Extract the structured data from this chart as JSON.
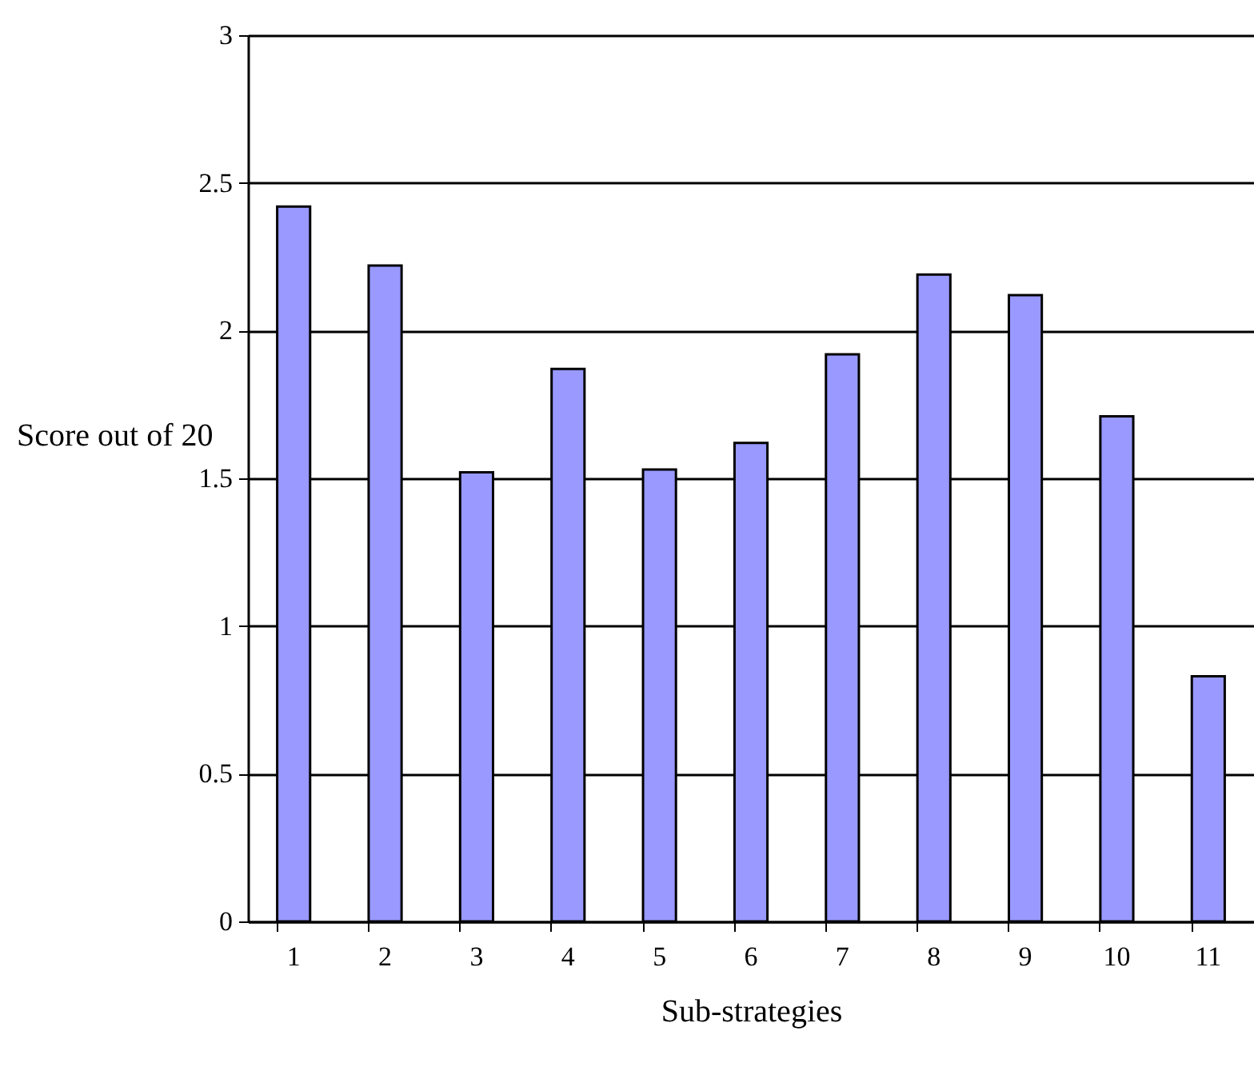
{
  "chart_data": {
    "type": "bar",
    "xlabel": "Sub-strategies",
    "ylabel": "Score out of 20",
    "categories": [
      "1",
      "2",
      "3",
      "4",
      "5",
      "6",
      "7",
      "8",
      "9",
      "10",
      "11"
    ],
    "values": [
      2.42,
      2.22,
      1.52,
      1.87,
      1.53,
      1.62,
      1.92,
      2.19,
      2.12,
      1.71,
      0.83
    ],
    "color": "#9999ff",
    "ylim": [
      0,
      3
    ],
    "yticks": [
      0,
      0.5,
      1,
      1.5,
      2,
      2.5,
      3
    ],
    "grid": "y"
  }
}
